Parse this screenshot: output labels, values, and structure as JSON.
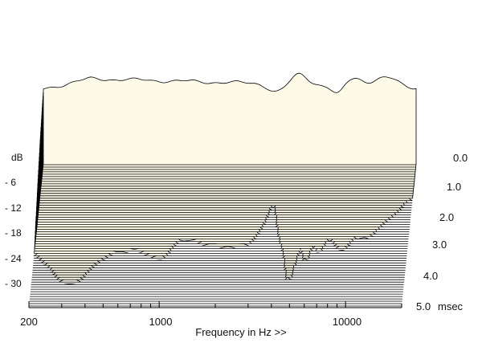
{
  "chart_data": {
    "type": "waterfall",
    "title": "",
    "xlabel": "Frequency in Hz >>",
    "ylabel": "dB",
    "zlabel": "msec",
    "x_scale": "log",
    "xlim": [
      200,
      20000
    ],
    "x_ticks": [
      {
        "value": 200,
        "label": "200"
      },
      {
        "value": 1000,
        "label": "1000"
      },
      {
        "value": 10000,
        "label": "10000"
      }
    ],
    "y_ticks": [
      {
        "value": -6,
        "label": "- 6"
      },
      {
        "value": -12,
        "label": "- 12"
      },
      {
        "value": -18,
        "label": "- 18"
      },
      {
        "value": -24,
        "label": "- 24"
      },
      {
        "value": -30,
        "label": "- 30"
      }
    ],
    "ylim": [
      -36,
      0
    ],
    "time_ticks": [
      {
        "value": 0.0,
        "label": "0.0"
      },
      {
        "value": 1.0,
        "label": "1.0"
      },
      {
        "value": 2.0,
        "label": "2.0"
      },
      {
        "value": 3.0,
        "label": "3.0"
      },
      {
        "value": 4.0,
        "label": "4.0"
      },
      {
        "value": 5.0,
        "label": "5.0"
      }
    ],
    "time_unit": "msec",
    "time_range": [
      0,
      5
    ],
    "slice_count": 60,
    "colors": {
      "fill": "#fdfae8",
      "line": "#000000"
    }
  }
}
